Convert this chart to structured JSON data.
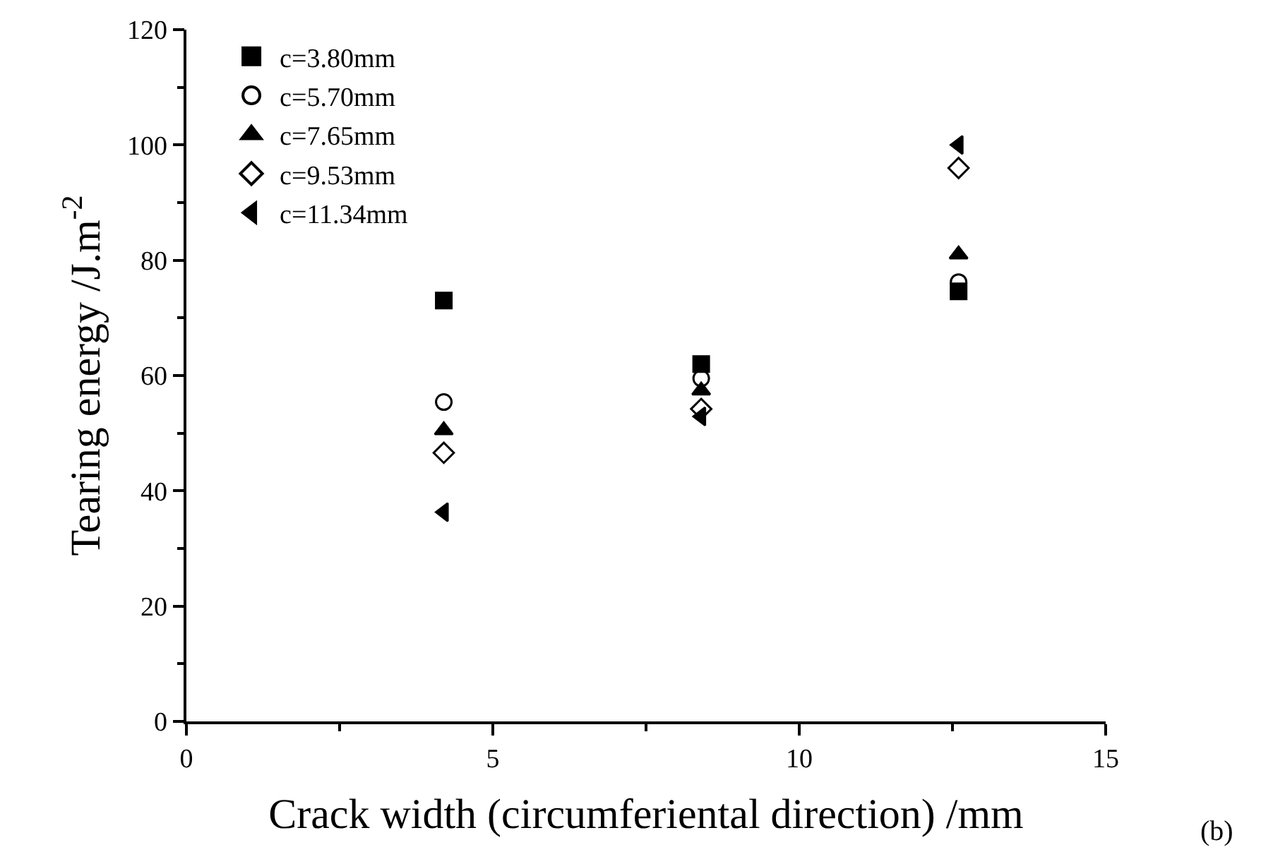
{
  "chart_data": {
    "type": "scatter",
    "xlabel": "Crack width (circumferiental direction) /mm",
    "ylabel": "Tearing energy /J.m$^{-2}$",
    "x": [
      4.2,
      8.4,
      12.6
    ],
    "series": [
      {
        "name": "c=3.80mm",
        "color": "#000000",
        "marker": "square",
        "values": [
          73,
          62,
          74.6
        ]
      },
      {
        "name": "c=5.70mm",
        "color": "#000000",
        "marker": "circle-open",
        "values": [
          55.4,
          59.5,
          76.2
        ]
      },
      {
        "name": "c=7.65mm",
        "color": "#000000",
        "marker": "triangle",
        "values": [
          50.5,
          57.4,
          81
        ]
      },
      {
        "name": "c=9.53mm",
        "color": "#000000",
        "marker": "diamond-open",
        "values": [
          46.6,
          54.2,
          96
        ]
      },
      {
        "name": "c=11.34mm",
        "color": "#000000",
        "marker": "triangle-left",
        "values": [
          36.3,
          52.9,
          100
        ]
      }
    ],
    "xlim": [
      0,
      15
    ],
    "ylim": [
      0,
      120
    ],
    "xticks": [
      0,
      {
        "value": 2.5,
        "label": null
      },
      5,
      {
        "value": 7.5,
        "label": null
      },
      10,
      {
        "value": 12.5,
        "label": null
      },
      15
    ],
    "yticks": [
      0,
      {
        "value": 10,
        "label": null
      },
      20,
      {
        "value": 30,
        "label": null
      },
      40,
      {
        "value": 50,
        "label": null
      },
      60,
      {
        "value": 70,
        "label": null
      },
      80,
      {
        "value": 90,
        "label": null
      },
      100,
      {
        "value": 110,
        "label": null
      },
      120
    ],
    "legend": "top left",
    "annotations": [
      "(b)"
    ]
  }
}
